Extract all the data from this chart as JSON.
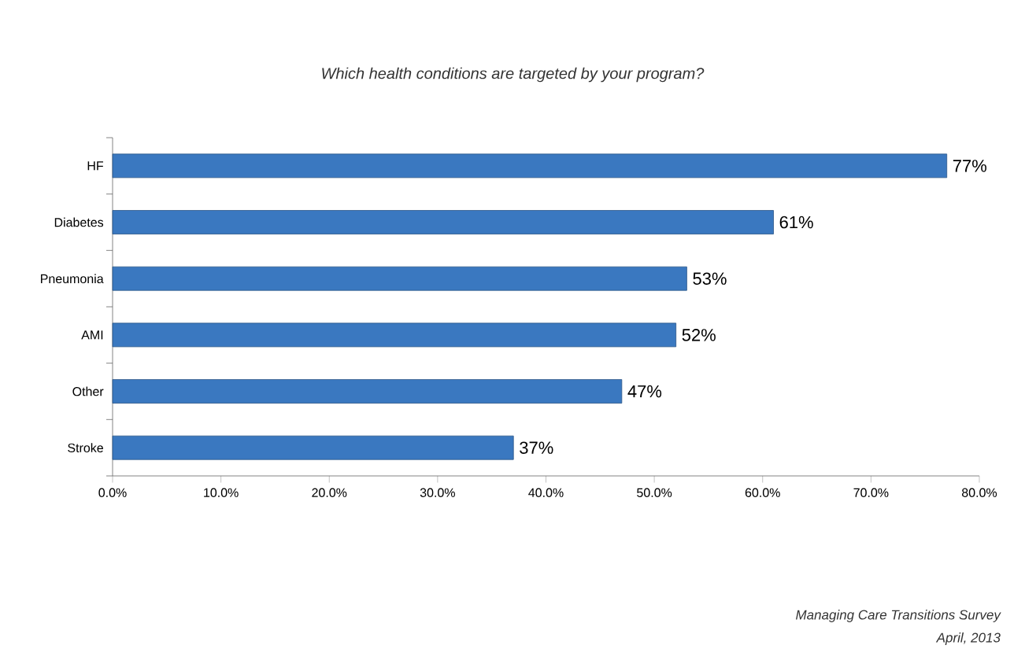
{
  "chart_data": {
    "type": "bar",
    "orientation": "horizontal",
    "subtitle": "Which health conditions are targeted by your program?",
    "categories": [
      "HF",
      "Diabetes",
      "Pneumonia",
      "AMI",
      "Other",
      "Stroke"
    ],
    "values": [
      77,
      61,
      53,
      52,
      47,
      37
    ],
    "value_labels": [
      "77%",
      "61%",
      "53%",
      "52%",
      "47%",
      "37%"
    ],
    "color": "#3a78c0",
    "xlim": [
      0,
      80
    ],
    "xticks": [
      {
        "value": 0,
        "label": "0.0%"
      },
      {
        "value": 10,
        "label": "10.0%"
      },
      {
        "value": 20,
        "label": "20.0%"
      },
      {
        "value": 30,
        "label": "30.0%"
      },
      {
        "value": 40,
        "label": "40.0%"
      },
      {
        "value": 50,
        "label": "50.0%"
      },
      {
        "value": 60,
        "label": "60.0%"
      },
      {
        "value": 70,
        "label": "70.0%"
      },
      {
        "value": 80,
        "label": "80.0%"
      }
    ],
    "grid": false,
    "annotations": [
      "Managing Care Transitions Survey",
      "April, 2013"
    ]
  }
}
